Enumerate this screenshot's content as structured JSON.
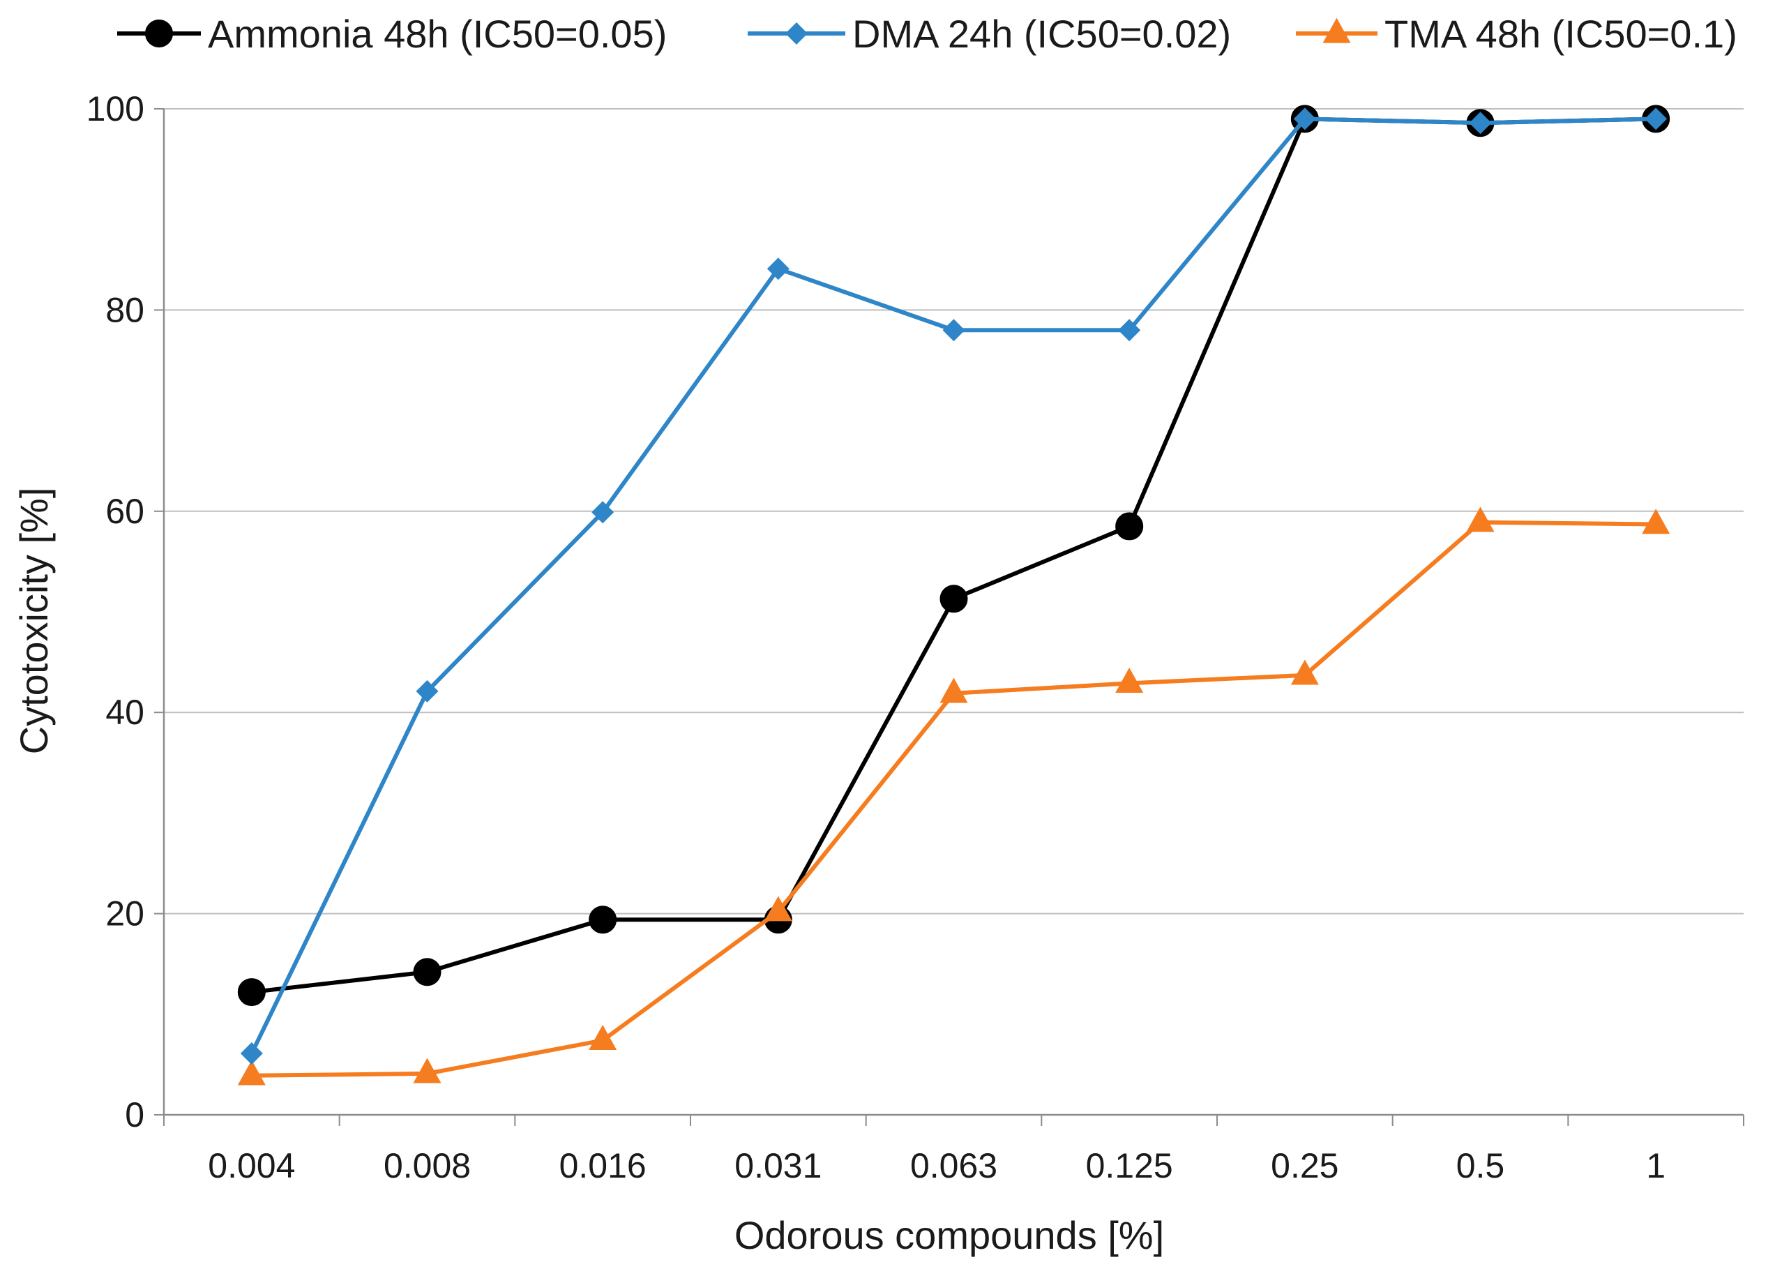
{
  "chart_data": {
    "type": "line",
    "title": "",
    "xlabel": "Odorous compounds [%]",
    "ylabel": "Cytotoxicity [%]",
    "categories": [
      "0.004",
      "0.008",
      "0.016",
      "0.031",
      "0.063",
      "0.125",
      "0.25",
      "0.5",
      "1"
    ],
    "ylim": [
      0,
      100
    ],
    "yticks": [
      "0",
      "20",
      "40",
      "60",
      "80",
      "100"
    ],
    "grid": true,
    "legend_position": "top",
    "series": [
      {
        "name": "Ammonia 48h (IC50=0.05)",
        "color": "#000000",
        "marker": "circle",
        "values": [
          12.2,
          14.2,
          19.4,
          19.4,
          51.3,
          58.5,
          99.0,
          98.6,
          99.0
        ]
      },
      {
        "name": "DMA 24h (IC50=0.02)",
        "color": "#2E86C8",
        "marker": "diamond",
        "values": [
          6.1,
          42.1,
          59.9,
          84.1,
          78.0,
          78.0,
          99.0,
          98.6,
          99.0
        ]
      },
      {
        "name": "TMA 48h (IC50=0.1)",
        "color": "#F57C1F",
        "marker": "triangle",
        "values": [
          3.9,
          4.1,
          7.4,
          20.2,
          41.9,
          42.9,
          43.7,
          58.9,
          58.7
        ]
      }
    ]
  }
}
